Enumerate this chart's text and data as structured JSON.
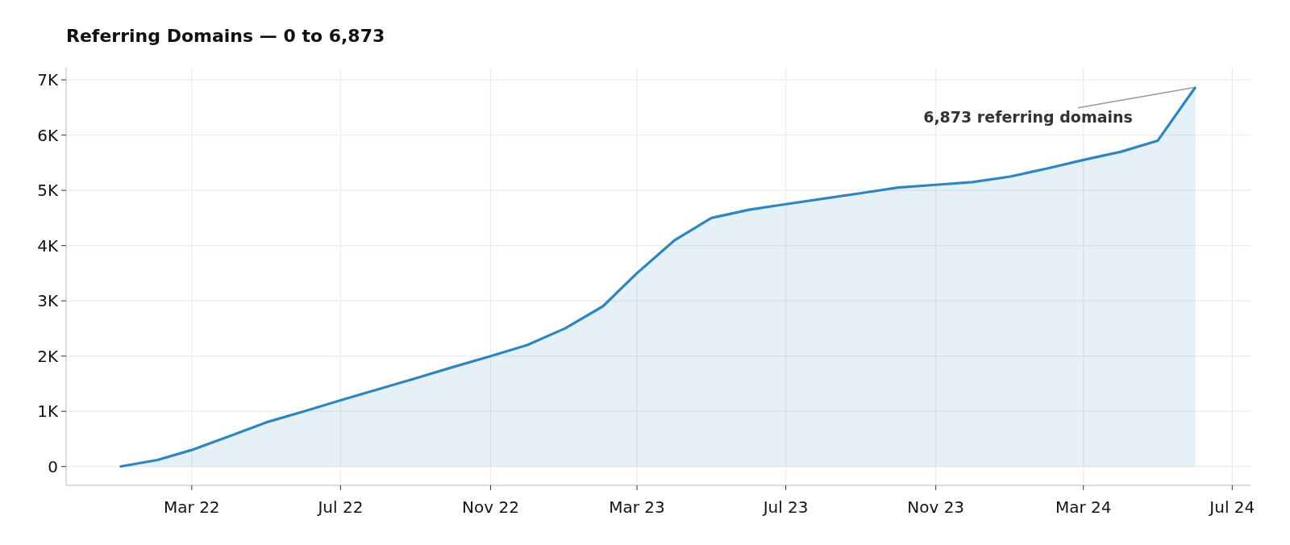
{
  "chart_data": {
    "type": "area",
    "title": "Referring Domains — 0 to 6,873",
    "x": [
      "2022-01",
      "2022-02",
      "2022-03",
      "2022-04",
      "2022-05",
      "2022-06",
      "2022-07",
      "2022-08",
      "2022-09",
      "2022-10",
      "2022-11",
      "2022-12",
      "2023-01",
      "2023-02",
      "2023-03",
      "2023-04",
      "2023-05",
      "2023-06",
      "2023-07",
      "2023-08",
      "2023-09",
      "2023-10",
      "2023-11",
      "2023-12",
      "2024-01",
      "2024-02",
      "2024-03",
      "2024-04",
      "2024-05",
      "2024-06"
    ],
    "series": [
      {
        "color": "#2e86c1",
        "values": [
          0,
          120,
          300,
          550,
          800,
          1000,
          1200,
          1400,
          1600,
          1800,
          2000,
          2200,
          2500,
          2900,
          3500,
          4100,
          4500,
          4650,
          4750,
          4850,
          4950,
          5050,
          5100,
          5150,
          5250,
          5400,
          5550,
          5700,
          5900,
          6873
        ]
      }
    ],
    "xlim": [
      "2021-11-18",
      "2024-07-16"
    ],
    "xticks": [
      {
        "value": "2022-03",
        "label": "Mar 22"
      },
      {
        "value": "2022-07",
        "label": "Jul 22"
      },
      {
        "value": "2022-11",
        "label": "Nov 22"
      },
      {
        "value": "2023-03",
        "label": "Mar 23"
      },
      {
        "value": "2023-07",
        "label": "Jul 23"
      },
      {
        "value": "2023-11",
        "label": "Nov 23"
      },
      {
        "value": "2024-03",
        "label": "Mar 24"
      },
      {
        "value": "2024-07",
        "label": "Jul 24"
      }
    ],
    "ylim": [
      -340,
      7220
    ],
    "yticks": [
      0,
      {
        "value": 1000,
        "label": "1K"
      },
      {
        "value": 2000,
        "label": "2K"
      },
      {
        "value": 3000,
        "label": "3K"
      },
      {
        "value": 4000,
        "label": "4K"
      },
      {
        "value": 5000,
        "label": "5K"
      },
      {
        "value": 6000,
        "label": "6K"
      },
      {
        "value": 7000,
        "label": "7K"
      }
    ],
    "grid": true,
    "annotations": [
      {
        "text": "6,873 referring domains",
        "x": "2024-06",
        "y": 6873
      }
    ]
  }
}
